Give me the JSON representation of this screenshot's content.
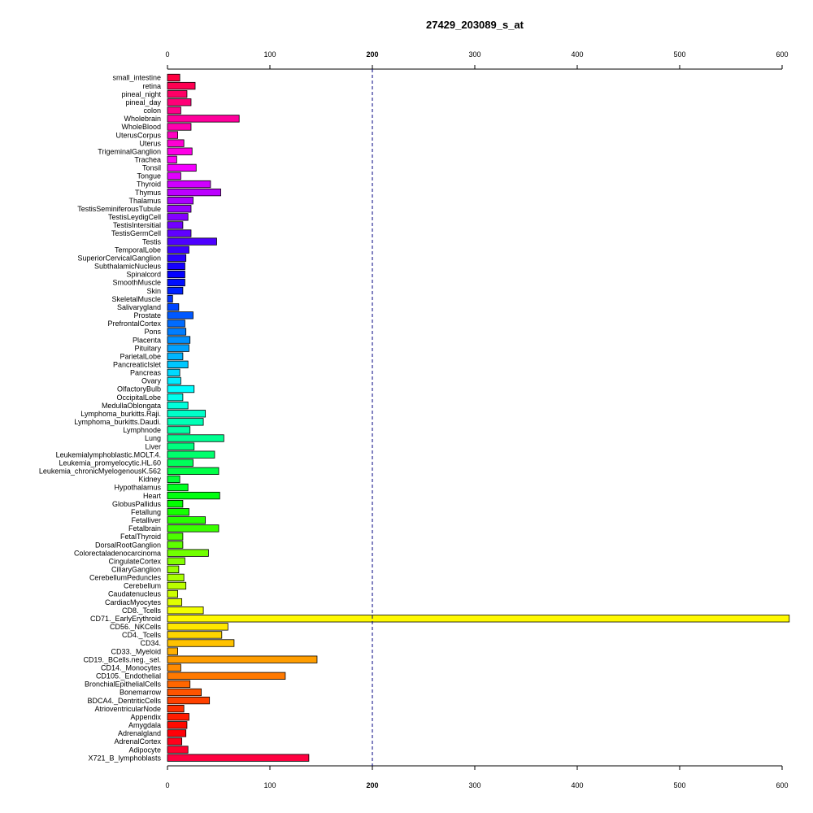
{
  "chart_data": {
    "type": "bar",
    "orientation": "horizontal",
    "title": "27429_203089_s_at",
    "xlabel": "",
    "ylabel": "",
    "xlim": [
      0,
      600
    ],
    "xticks": [
      "0",
      "100",
      "200",
      "300",
      "400",
      "500",
      "600"
    ],
    "reference_line": {
      "value": 200,
      "style": "dashed",
      "color": "#000080"
    },
    "bar_palette": "rainbow (red at top through magenta, blue, cyan, green, yellow, orange, back to red at bottom)",
    "categories": [
      "small_intestine",
      "retina",
      "pineal_night",
      "pineal_day",
      "colon",
      "Wholebrain",
      "WholeBlood",
      "UterusCorpus",
      "Uterus",
      "TrigeminalGanglion",
      "Trachea",
      "Tonsil",
      "Tongue",
      "Thyroid",
      "Thymus",
      "Thalamus",
      "TestisSeminiferousTubule",
      "TestisLeydigCell",
      "TestisIntersitial",
      "TestisGermCell",
      "Testis",
      "TemporalLobe",
      "SuperiorCervicalGanglion",
      "SubthalamicNucleus",
      "Spinalcord",
      "SmoothMuscle",
      "Skin",
      "SkeletalMuscle",
      "Salivarygland",
      "Prostate",
      "PrefrontalCortex",
      "Pons",
      "Placenta",
      "Pituitary",
      "ParietalLobe",
      "PancreaticIslet",
      "Pancreas",
      "Ovary",
      "OlfactoryBulb",
      "OccipitalLobe",
      "MedullaOblongata",
      "Lymphoma_burkitts.Raji.",
      "Lymphoma_burkitts.Daudi.",
      "Lymphnode",
      "Lung",
      "Liver",
      "Leukemialymphoblastic.MOLT.4.",
      "Leukemia_promyelocytic.HL.60",
      "Leukemia_chronicMyelogenousK.562",
      "Kidney",
      "Hypothalamus",
      "Heart",
      "GlobusPallidus",
      "Fetallung",
      "Fetalliver",
      "Fetalbrain",
      "FetalThyroid",
      "DorsalRootGanglion",
      "Colorectaladenocarcinoma",
      "CingulateCortex",
      "CiliaryGanglion",
      "CerebellumPeduncles",
      "Cerebellum",
      "Caudatenucleus",
      "CardiacMyocytes",
      "CD8._Tcells",
      "CD71._EarlyErythroid",
      "CD56._NKCells",
      "CD4._Tcells",
      "CD34.",
      "CD33._Myeloid",
      "CD19._BCells.neg._sel.",
      "CD14._Monocytes",
      "CD105._Endothelial",
      "BronchialEpithelialCells",
      "Bonemarrow",
      "BDCA4._DentriticCells",
      "AtrioventricularNode",
      "Appendix",
      "Amygdala",
      "Adrenalgland",
      "AdrenalCortex",
      "Adipocyte",
      "X721_B_lymphoblasts"
    ],
    "values": [
      12,
      27,
      19,
      23,
      13,
      70,
      23,
      10,
      16,
      24,
      9,
      28,
      13,
      42,
      52,
      25,
      23,
      20,
      15,
      23,
      48,
      21,
      18,
      17,
      17,
      17,
      15,
      5,
      11,
      25,
      17,
      18,
      22,
      21,
      15,
      20,
      12,
      13,
      26,
      15,
      20,
      37,
      35,
      22,
      55,
      26,
      46,
      25,
      50,
      12,
      20,
      51,
      15,
      21,
      37,
      50,
      15,
      15,
      40,
      17,
      11,
      16,
      18,
      10,
      14,
      35,
      607,
      59,
      53,
      65,
      10,
      146,
      13,
      115,
      22,
      33,
      41,
      16,
      21,
      19,
      18,
      14,
      20,
      138
    ]
  }
}
